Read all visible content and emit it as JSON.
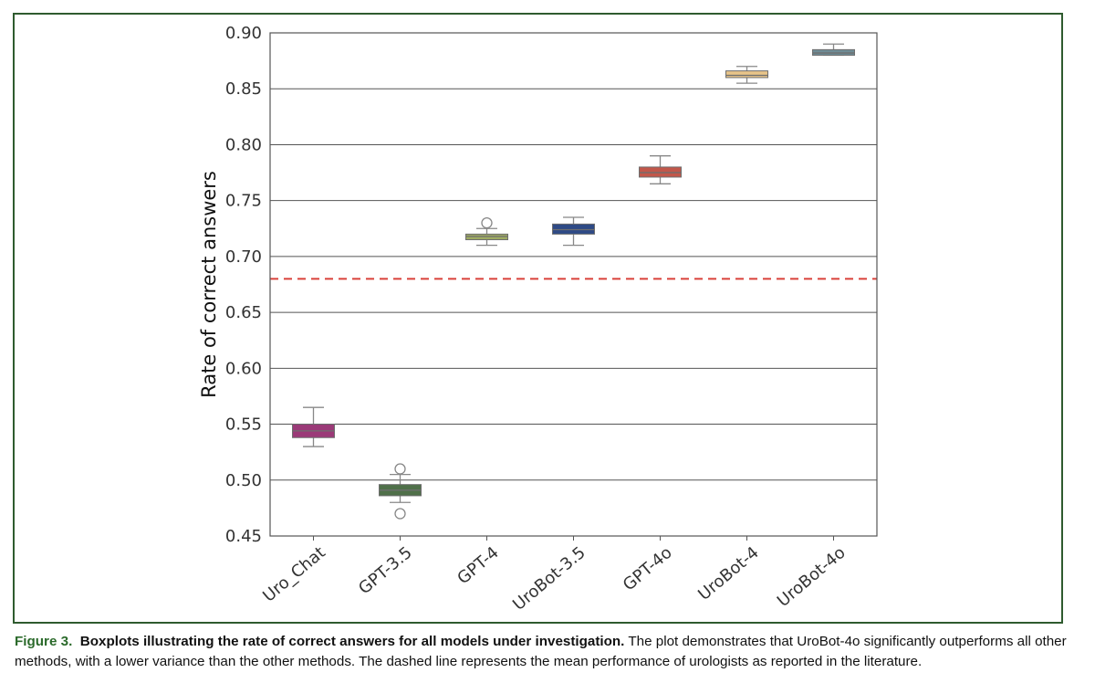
{
  "chart_data": {
    "type": "box",
    "ylabel": "Rate of correct answers",
    "xlabel": "",
    "ylim": [
      0.45,
      0.9
    ],
    "yticks": [
      "0.45",
      "0.50",
      "0.55",
      "0.60",
      "0.65",
      "0.70",
      "0.75",
      "0.80",
      "0.85",
      "0.90"
    ],
    "grid": "horizontal",
    "categories": [
      "Uro_Chat",
      "GPT-3.5",
      "GPT-4",
      "UroBot-3.5",
      "GPT-4o",
      "UroBot-4",
      "UroBot-4o"
    ],
    "boxes": [
      {
        "label": "Uro_Chat",
        "whisker_low": 0.53,
        "q1": 0.538,
        "median": 0.544,
        "q3": 0.55,
        "whisker_high": 0.565,
        "outliers": [],
        "color": "#9b3a78"
      },
      {
        "label": "GPT-3.5",
        "whisker_low": 0.48,
        "q1": 0.486,
        "median": 0.491,
        "q3": 0.496,
        "whisker_high": 0.505,
        "outliers": [
          0.47,
          0.51
        ],
        "color": "#4f7049"
      },
      {
        "label": "GPT-4",
        "whisker_low": 0.71,
        "q1": 0.715,
        "median": 0.718,
        "q3": 0.72,
        "whisker_high": 0.725,
        "outliers": [
          0.73
        ],
        "color": "#9eab62"
      },
      {
        "label": "UroBot-3.5",
        "whisker_low": 0.71,
        "q1": 0.72,
        "median": 0.724,
        "q3": 0.729,
        "whisker_high": 0.735,
        "outliers": [],
        "color": "#2e4a86"
      },
      {
        "label": "GPT-4o",
        "whisker_low": 0.765,
        "q1": 0.771,
        "median": 0.775,
        "q3": 0.78,
        "whisker_high": 0.79,
        "outliers": [],
        "color": "#c2574a"
      },
      {
        "label": "UroBot-4",
        "whisker_low": 0.855,
        "q1": 0.86,
        "median": 0.862,
        "q3": 0.866,
        "whisker_high": 0.87,
        "outliers": [],
        "color": "#e8c489"
      },
      {
        "label": "UroBot-4o",
        "whisker_low": 0.88,
        "q1": 0.88,
        "median": 0.882,
        "q3": 0.885,
        "whisker_high": 0.89,
        "outliers": [],
        "color": "#6f8c96"
      }
    ],
    "reference_line": {
      "value": 0.68,
      "style": "dashed",
      "color": "#d9413a"
    },
    "colors": {
      "grid": "#555555",
      "whisker": "#888888",
      "outlier": "#888888"
    }
  },
  "caption": {
    "figure_label": "Figure 3.",
    "bold_text": "Boxplots illustrating the rate of correct answers for all models under investigation.",
    "body_text": "The plot demonstrates that UroBot-4o significantly outperforms all other methods, with a lower variance than the other methods. The dashed line represents the mean performance of urologists as reported in the literature."
  }
}
